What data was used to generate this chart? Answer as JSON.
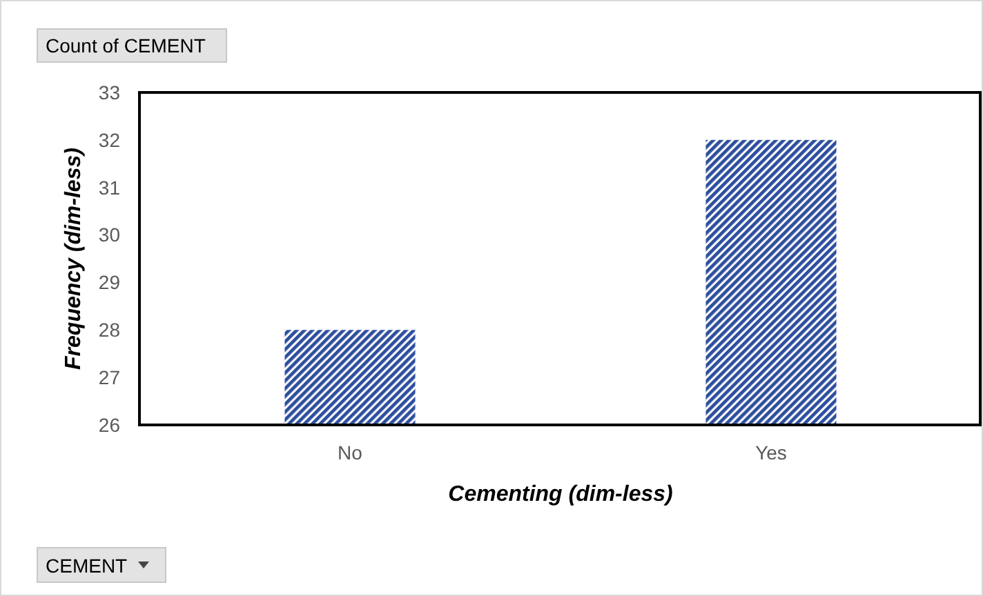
{
  "chart_data": {
    "type": "bar",
    "xlabel": "Cementing (dim-less)",
    "ylabel": "Frequency (dim-less)",
    "categories": [
      "No",
      "Yes"
    ],
    "values": [
      28,
      32
    ],
    "color": "#2e4f9e",
    "ylim": [
      26,
      33
    ],
    "yticks": [
      26,
      27,
      28,
      29,
      30,
      31,
      32,
      33
    ],
    "grid": false,
    "annotations": [
      "Count of CEMENT",
      "CEMENT"
    ]
  }
}
